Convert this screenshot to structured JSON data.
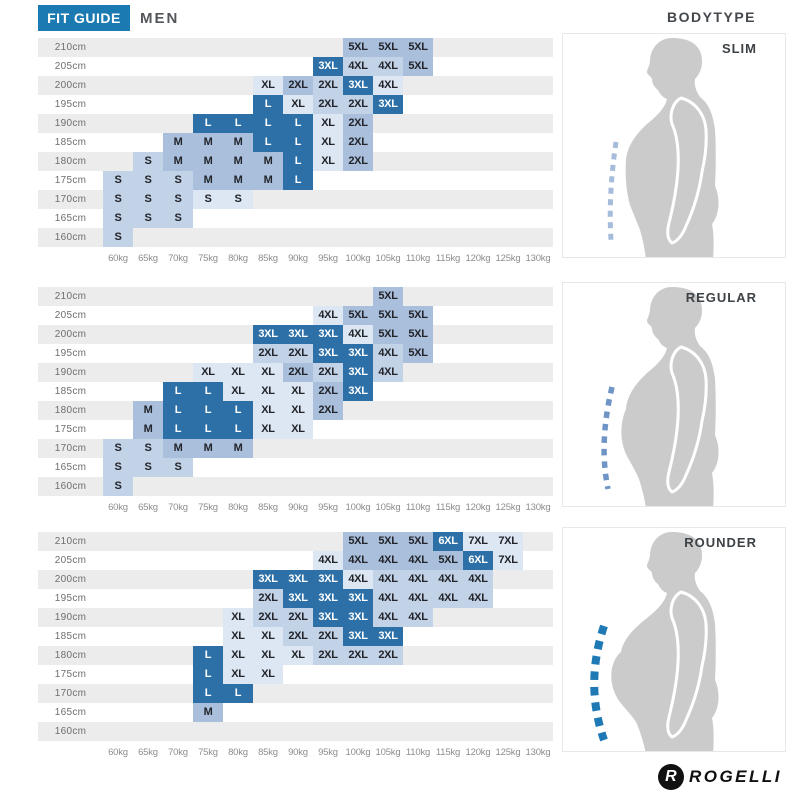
{
  "header": {
    "badge": "FIT GUIDE",
    "category": "MEN",
    "right_label": "BODYTYPE"
  },
  "logo": {
    "brand": "ROGELLI"
  },
  "colors": {
    "brand_blue": "#1c7ab2",
    "row_stripe": "#ececec",
    "silhouette_gray": "#cbcbcb",
    "dash_slim": "#a5bcdb",
    "dash_regular": "#6e95c6",
    "dash_rounder": "#1e79b5"
  },
  "tones": {
    "d": "#2d70a8",
    "m": "#a9bfdc",
    "l": "#c2d2e7",
    "f": "#dce7f3"
  },
  "tone_meaning": {
    "d": "best-fit size (dark blue)",
    "m": "good fit (medium blue)",
    "l": "possible fit (light blue)",
    "f": "marginal fit (faint blue)"
  },
  "axes": {
    "weights": [
      "60kg",
      "65kg",
      "70kg",
      "75kg",
      "80kg",
      "85kg",
      "90kg",
      "95kg",
      "100kg",
      "105kg",
      "110kg",
      "115kg",
      "120kg",
      "125kg",
      "130kg"
    ],
    "heights": [
      "210cm",
      "205cm",
      "200cm",
      "195cm",
      "190cm",
      "185cm",
      "180cm",
      "175cm",
      "170cm",
      "165cm",
      "160cm"
    ]
  },
  "chart_data": [
    {
      "type": "heatmap",
      "bodytype": "SLIM",
      "rows": [
        {
          "h": "210cm",
          "cells": [
            [
              "100kg",
              "5XL",
              "m"
            ],
            [
              "105kg",
              "5XL",
              "m"
            ],
            [
              "110kg",
              "5XL",
              "m"
            ]
          ]
        },
        {
          "h": "205cm",
          "cells": [
            [
              "95kg",
              "3XL",
              "d"
            ],
            [
              "100kg",
              "4XL",
              "l"
            ],
            [
              "105kg",
              "4XL",
              "l"
            ],
            [
              "110kg",
              "5XL",
              "m"
            ]
          ]
        },
        {
          "h": "200cm",
          "cells": [
            [
              "85kg",
              "XL",
              "f"
            ],
            [
              "90kg",
              "2XL",
              "m"
            ],
            [
              "95kg",
              "2XL",
              "l"
            ],
            [
              "100kg",
              "3XL",
              "d"
            ],
            [
              "105kg",
              "4XL",
              "f"
            ]
          ]
        },
        {
          "h": "195cm",
          "cells": [
            [
              "85kg",
              "L",
              "d"
            ],
            [
              "90kg",
              "XL",
              "f"
            ],
            [
              "95kg",
              "2XL",
              "l"
            ],
            [
              "100kg",
              "2XL",
              "l"
            ],
            [
              "105kg",
              "3XL",
              "d"
            ]
          ]
        },
        {
          "h": "190cm",
          "cells": [
            [
              "75kg",
              "L",
              "d"
            ],
            [
              "80kg",
              "L",
              "d"
            ],
            [
              "85kg",
              "L",
              "d"
            ],
            [
              "90kg",
              "L",
              "d"
            ],
            [
              "95kg",
              "XL",
              "f"
            ],
            [
              "100kg",
              "2XL",
              "m"
            ]
          ]
        },
        {
          "h": "185cm",
          "cells": [
            [
              "70kg",
              "M",
              "m"
            ],
            [
              "75kg",
              "M",
              "m"
            ],
            [
              "80kg",
              "M",
              "m"
            ],
            [
              "85kg",
              "L",
              "d"
            ],
            [
              "90kg",
              "L",
              "d"
            ],
            [
              "95kg",
              "XL",
              "f"
            ],
            [
              "100kg",
              "2XL",
              "m"
            ]
          ]
        },
        {
          "h": "180cm",
          "cells": [
            [
              "65kg",
              "S",
              "l"
            ],
            [
              "70kg",
              "M",
              "m"
            ],
            [
              "75kg",
              "M",
              "m"
            ],
            [
              "80kg",
              "M",
              "m"
            ],
            [
              "85kg",
              "M",
              "m"
            ],
            [
              "90kg",
              "L",
              "d"
            ],
            [
              "95kg",
              "XL",
              "f"
            ],
            [
              "100kg",
              "2XL",
              "m"
            ]
          ]
        },
        {
          "h": "175cm",
          "cells": [
            [
              "60kg",
              "S",
              "l"
            ],
            [
              "65kg",
              "S",
              "l"
            ],
            [
              "70kg",
              "S",
              "l"
            ],
            [
              "75kg",
              "M",
              "m"
            ],
            [
              "80kg",
              "M",
              "m"
            ],
            [
              "85kg",
              "M",
              "m"
            ],
            [
              "90kg",
              "L",
              "d"
            ]
          ]
        },
        {
          "h": "170cm",
          "cells": [
            [
              "60kg",
              "S",
              "l"
            ],
            [
              "65kg",
              "S",
              "l"
            ],
            [
              "70kg",
              "S",
              "l"
            ],
            [
              "75kg",
              "S",
              "f"
            ],
            [
              "80kg",
              "S",
              "f"
            ]
          ]
        },
        {
          "h": "165cm",
          "cells": [
            [
              "60kg",
              "S",
              "l"
            ],
            [
              "65kg",
              "S",
              "l"
            ],
            [
              "70kg",
              "S",
              "l"
            ]
          ]
        },
        {
          "h": "160cm",
          "cells": [
            [
              "60kg",
              "S",
              "l"
            ]
          ]
        }
      ]
    },
    {
      "type": "heatmap",
      "bodytype": "REGULAR",
      "rows": [
        {
          "h": "210cm",
          "cells": [
            [
              "105kg",
              "5XL",
              "m"
            ]
          ]
        },
        {
          "h": "205cm",
          "cells": [
            [
              "95kg",
              "4XL",
              "f"
            ],
            [
              "100kg",
              "5XL",
              "m"
            ],
            [
              "105kg",
              "5XL",
              "m"
            ],
            [
              "110kg",
              "5XL",
              "m"
            ]
          ]
        },
        {
          "h": "200cm",
          "cells": [
            [
              "85kg",
              "3XL",
              "d"
            ],
            [
              "90kg",
              "3XL",
              "d"
            ],
            [
              "95kg",
              "3XL",
              "d"
            ],
            [
              "100kg",
              "4XL",
              "f"
            ],
            [
              "105kg",
              "5XL",
              "m"
            ],
            [
              "110kg",
              "5XL",
              "m"
            ]
          ]
        },
        {
          "h": "195cm",
          "cells": [
            [
              "85kg",
              "2XL",
              "l"
            ],
            [
              "90kg",
              "2XL",
              "l"
            ],
            [
              "95kg",
              "3XL",
              "d"
            ],
            [
              "100kg",
              "3XL",
              "d"
            ],
            [
              "105kg",
              "4XL",
              "l"
            ],
            [
              "110kg",
              "5XL",
              "m"
            ]
          ]
        },
        {
          "h": "190cm",
          "cells": [
            [
              "75kg",
              "XL",
              "f"
            ],
            [
              "80kg",
              "XL",
              "f"
            ],
            [
              "85kg",
              "XL",
              "f"
            ],
            [
              "90kg",
              "2XL",
              "m"
            ],
            [
              "95kg",
              "2XL",
              "l"
            ],
            [
              "100kg",
              "3XL",
              "d"
            ],
            [
              "105kg",
              "4XL",
              "l"
            ]
          ]
        },
        {
          "h": "185cm",
          "cells": [
            [
              "70kg",
              "L",
              "d"
            ],
            [
              "75kg",
              "L",
              "d"
            ],
            [
              "80kg",
              "XL",
              "f"
            ],
            [
              "85kg",
              "XL",
              "f"
            ],
            [
              "90kg",
              "XL",
              "f"
            ],
            [
              "95kg",
              "2XL",
              "m"
            ],
            [
              "100kg",
              "3XL",
              "d"
            ]
          ]
        },
        {
          "h": "180cm",
          "cells": [
            [
              "65kg",
              "M",
              "m"
            ],
            [
              "70kg",
              "L",
              "d"
            ],
            [
              "75kg",
              "L",
              "d"
            ],
            [
              "80kg",
              "L",
              "d"
            ],
            [
              "85kg",
              "XL",
              "f"
            ],
            [
              "90kg",
              "XL",
              "f"
            ],
            [
              "95kg",
              "2XL",
              "m"
            ]
          ]
        },
        {
          "h": "175cm",
          "cells": [
            [
              "65kg",
              "M",
              "m"
            ],
            [
              "70kg",
              "L",
              "d"
            ],
            [
              "75kg",
              "L",
              "d"
            ],
            [
              "80kg",
              "L",
              "d"
            ],
            [
              "85kg",
              "XL",
              "f"
            ],
            [
              "90kg",
              "XL",
              "f"
            ]
          ]
        },
        {
          "h": "170cm",
          "cells": [
            [
              "60kg",
              "S",
              "l"
            ],
            [
              "65kg",
              "S",
              "l"
            ],
            [
              "70kg",
              "M",
              "m"
            ],
            [
              "75kg",
              "M",
              "m"
            ],
            [
              "80kg",
              "M",
              "m"
            ]
          ]
        },
        {
          "h": "165cm",
          "cells": [
            [
              "60kg",
              "S",
              "l"
            ],
            [
              "65kg",
              "S",
              "l"
            ],
            [
              "70kg",
              "S",
              "l"
            ]
          ]
        },
        {
          "h": "160cm",
          "cells": [
            [
              "60kg",
              "S",
              "l"
            ]
          ]
        }
      ]
    },
    {
      "type": "heatmap",
      "bodytype": "ROUNDER",
      "rows": [
        {
          "h": "210cm",
          "cells": [
            [
              "100kg",
              "5XL",
              "m"
            ],
            [
              "105kg",
              "5XL",
              "m"
            ],
            [
              "110kg",
              "5XL",
              "m"
            ],
            [
              "115kg",
              "6XL",
              "d"
            ],
            [
              "120kg",
              "7XL",
              "f"
            ],
            [
              "125kg",
              "7XL",
              "f"
            ]
          ]
        },
        {
          "h": "205cm",
          "cells": [
            [
              "95kg",
              "4XL",
              "f"
            ],
            [
              "100kg",
              "4XL",
              "m"
            ],
            [
              "105kg",
              "4XL",
              "m"
            ],
            [
              "110kg",
              "4XL",
              "m"
            ],
            [
              "115kg",
              "5XL",
              "m"
            ],
            [
              "120kg",
              "6XL",
              "d"
            ],
            [
              "125kg",
              "7XL",
              "f"
            ]
          ]
        },
        {
          "h": "200cm",
          "cells": [
            [
              "85kg",
              "3XL",
              "d"
            ],
            [
              "90kg",
              "3XL",
              "d"
            ],
            [
              "95kg",
              "3XL",
              "d"
            ],
            [
              "100kg",
              "4XL",
              "f"
            ],
            [
              "105kg",
              "4XL",
              "l"
            ],
            [
              "110kg",
              "4XL",
              "l"
            ],
            [
              "115kg",
              "4XL",
              "l"
            ],
            [
              "120kg",
              "4XL",
              "l"
            ]
          ]
        },
        {
          "h": "195cm",
          "cells": [
            [
              "85kg",
              "2XL",
              "l"
            ],
            [
              "90kg",
              "3XL",
              "d"
            ],
            [
              "95kg",
              "3XL",
              "d"
            ],
            [
              "100kg",
              "3XL",
              "d"
            ],
            [
              "105kg",
              "4XL",
              "l"
            ],
            [
              "110kg",
              "4XL",
              "l"
            ],
            [
              "115kg",
              "4XL",
              "l"
            ],
            [
              "120kg",
              "4XL",
              "l"
            ]
          ]
        },
        {
          "h": "190cm",
          "cells": [
            [
              "80kg",
              "XL",
              "f"
            ],
            [
              "85kg",
              "2XL",
              "l"
            ],
            [
              "90kg",
              "2XL",
              "l"
            ],
            [
              "95kg",
              "3XL",
              "d"
            ],
            [
              "100kg",
              "3XL",
              "d"
            ],
            [
              "105kg",
              "4XL",
              "l"
            ],
            [
              "110kg",
              "4XL",
              "l"
            ]
          ]
        },
        {
          "h": "185cm",
          "cells": [
            [
              "80kg",
              "XL",
              "f"
            ],
            [
              "85kg",
              "XL",
              "f"
            ],
            [
              "90kg",
              "2XL",
              "l"
            ],
            [
              "95kg",
              "2XL",
              "l"
            ],
            [
              "100kg",
              "3XL",
              "d"
            ],
            [
              "105kg",
              "3XL",
              "d"
            ]
          ]
        },
        {
          "h": "180cm",
          "cells": [
            [
              "75kg",
              "L",
              "d"
            ],
            [
              "80kg",
              "XL",
              "f"
            ],
            [
              "85kg",
              "XL",
              "f"
            ],
            [
              "90kg",
              "XL",
              "f"
            ],
            [
              "95kg",
              "2XL",
              "l"
            ],
            [
              "100kg",
              "2XL",
              "l"
            ],
            [
              "105kg",
              "2XL",
              "l"
            ]
          ]
        },
        {
          "h": "175cm",
          "cells": [
            [
              "75kg",
              "L",
              "d"
            ],
            [
              "80kg",
              "XL",
              "f"
            ],
            [
              "85kg",
              "XL",
              "f"
            ]
          ]
        },
        {
          "h": "170cm",
          "cells": [
            [
              "75kg",
              "L",
              "d"
            ],
            [
              "80kg",
              "L",
              "d"
            ]
          ]
        },
        {
          "h": "165cm",
          "cells": [
            [
              "75kg",
              "M",
              "m"
            ]
          ]
        },
        {
          "h": "160cm",
          "cells": []
        }
      ]
    }
  ]
}
